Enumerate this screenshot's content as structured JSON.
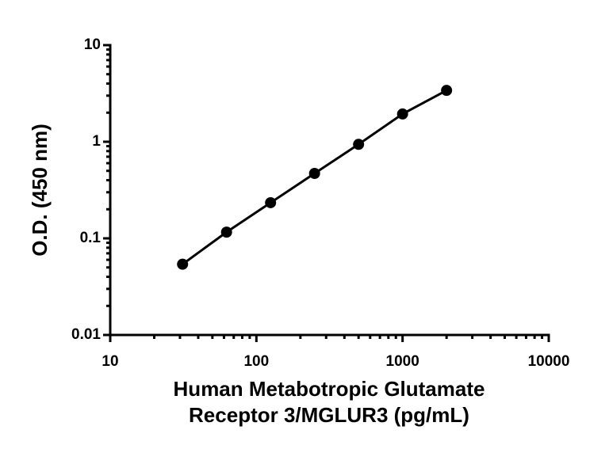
{
  "chart_data": {
    "type": "scatter",
    "x": [
      31.25,
      62.5,
      125,
      250,
      500,
      1000,
      2000
    ],
    "values": [
      0.054,
      0.116,
      0.234,
      0.47,
      0.94,
      1.94,
      3.4
    ],
    "color": "#000000",
    "xscale": "log",
    "yscale": "log",
    "xlim": [
      10,
      10000
    ],
    "ylim": [
      0.01,
      10
    ],
    "xticks": [
      10,
      100,
      1000,
      10000
    ],
    "yticks": [
      0.01,
      0.1,
      1,
      10
    ],
    "xlabel": [
      "Human Metabotropic Glutamate",
      "Receptor 3/MGLUR3 (pg/mL)"
    ],
    "ylabel": "O.D. (450 nm)"
  }
}
